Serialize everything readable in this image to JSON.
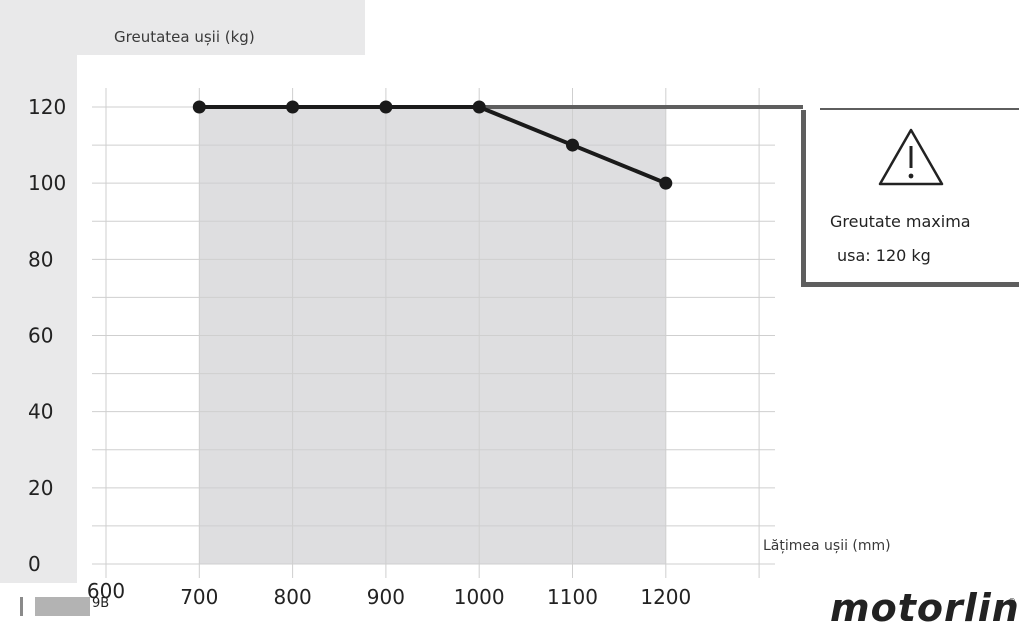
{
  "chart_data": {
    "type": "line",
    "title": "",
    "ylabel": "Greutatea ușii (kg)",
    "xlabel": "Lățimea ușii (mm)",
    "x_ticks": [
      600,
      700,
      800,
      900,
      1000,
      1100,
      1200
    ],
    "y_ticks": [
      0,
      20,
      40,
      60,
      80,
      100,
      120
    ],
    "xlim": [
      600,
      1300
    ],
    "ylim": [
      0,
      120
    ],
    "grid": true,
    "shaded_region": {
      "x": [
        700,
        1200
      ],
      "color": "#dedee0"
    },
    "series": [
      {
        "x": [
          700,
          800,
          900,
          1000,
          1100,
          1200
        ],
        "y": [
          120,
          120,
          120,
          120,
          110,
          100
        ],
        "color": "#1a1a1a"
      }
    ]
  },
  "warning": {
    "icon": "warning-triangle-icon",
    "line1": "Greutate maxima",
    "line2": "usa: 120 kg"
  },
  "footer": {
    "page_code": "9B",
    "brand": "motorline",
    "brand_mark": "®"
  },
  "colors": {
    "panel": "#e9e9ea",
    "shade": "#dedee0",
    "grid": "#cfcfcf",
    "line": "#1a1a1a",
    "connector": "#5e5e5e"
  }
}
